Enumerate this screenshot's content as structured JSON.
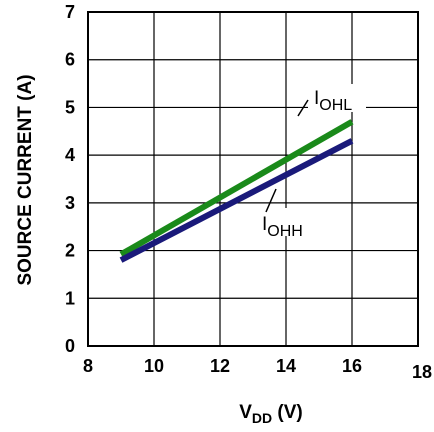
{
  "chart_data": {
    "type": "line",
    "title": "",
    "xlabel": {
      "main": "V",
      "sub": "DD",
      "unit": " (V)"
    },
    "ylabel": "SOURCE CURRENT (A)",
    "xlim": [
      8,
      18
    ],
    "ylim": [
      0,
      7
    ],
    "xticks": [
      "8",
      "10",
      "12",
      "14",
      "16",
      "18"
    ],
    "yticks": [
      "0",
      "1",
      "2",
      "3",
      "4",
      "5",
      "6",
      "7"
    ],
    "grid": true,
    "series": [
      {
        "name": "I",
        "sub": "OHL",
        "color": "#1a8a1a",
        "x": [
          9,
          16
        ],
        "y": [
          1.92,
          4.7
        ]
      },
      {
        "name": "I",
        "sub": "OHH",
        "color": "#1a1a7a",
        "x": [
          9,
          16
        ],
        "y": [
          1.8,
          4.3
        ]
      }
    ]
  }
}
